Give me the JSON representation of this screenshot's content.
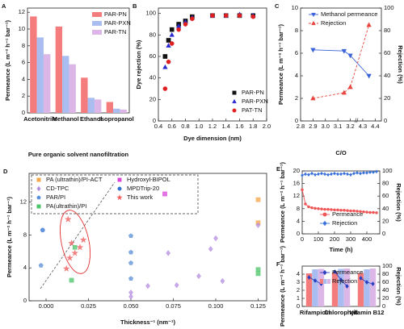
{
  "chart_data": [
    {
      "label": "A",
      "type": "bar",
      "ylabel": "Permeance (L m⁻² h⁻¹ bar⁻¹)",
      "xlabel": "Pure organic solvent nanofiltration",
      "categories": [
        "Acetonitrile",
        "Methanol",
        "Ethanol",
        "Isopropanol"
      ],
      "series": [
        {
          "name": "PAR-PN",
          "color": "#f47c7c",
          "values": [
            11.5,
            10.3,
            4.2,
            1.3
          ]
        },
        {
          "name": "PAR-PXN",
          "color": "#a9bdf0",
          "values": [
            9.0,
            6.8,
            1.8,
            0.5
          ]
        },
        {
          "name": "PAR-TN",
          "color": "#dcb6e6",
          "values": [
            7.0,
            5.8,
            1.6,
            0.4
          ]
        }
      ],
      "ylim": [
        0,
        12.5
      ],
      "yticks": [
        0,
        2,
        4,
        6,
        8,
        10,
        12
      ],
      "legend": "upper right"
    },
    {
      "label": "B",
      "type": "scatter",
      "ylabel": "Dye rejection (%)",
      "xlabel": "Dye dimension (nm)",
      "x": [
        0.5,
        0.55,
        0.6,
        0.7,
        0.8,
        0.9,
        1.2,
        1.4,
        1.6,
        1.8
      ],
      "series": [
        {
          "name": "PAR-PN",
          "color": "#111111",
          "marker": "square",
          "values": [
            60,
            75,
            85,
            90,
            93,
            97,
            98,
            98,
            98,
            98
          ]
        },
        {
          "name": "PAR-PXN",
          "color": "#2a2ad0",
          "marker": "triangle",
          "values": [
            50,
            70,
            80,
            88,
            92,
            96,
            98,
            98,
            99,
            98
          ]
        },
        {
          "name": "PAT-TN",
          "color": "#e02020",
          "marker": "circle",
          "values": [
            30,
            55,
            72,
            85,
            90,
            95,
            98,
            98,
            98,
            97
          ]
        }
      ],
      "xlim": [
        0.4,
        2.0
      ],
      "xticks": [
        0.4,
        0.6,
        0.8,
        {
          "value": 1,
          "label": "1.0"
        },
        1.2,
        1.4,
        1.6,
        1.8,
        {
          "value": 2,
          "label": "2.0"
        }
      ],
      "ylim": [
        0,
        105
      ],
      "yticks": [
        0,
        20,
        40,
        60,
        80,
        100
      ],
      "legend": "lower right"
    },
    {
      "label": "C",
      "type": "line",
      "ylabel": "Permeance (L m⁻² h⁻¹ bar⁻¹)",
      "y2label": "Rejection (%)",
      "xlabel": "C/O",
      "x": [
        2.9,
        3.15,
        3.2,
        4.35
      ],
      "series": [
        {
          "name": "Methanol permeance",
          "color": "#3a62d8",
          "marker": "tridown",
          "values": [
            6.3,
            6.2,
            5.8,
            4.0
          ]
        },
        {
          "name": "Rejection",
          "color": "#e8453c",
          "marker": "triangle",
          "dash": true,
          "axis": "y2",
          "values": [
            20,
            25,
            30,
            85
          ]
        }
      ],
      "xlim": [
        2.8,
        4.45
      ],
      "xbreak": [
        3.25,
        4.25
      ],
      "xticks": [
        2.8,
        2.9,
        {
          "value": 3,
          "label": "3.0"
        },
        3.1,
        3.2,
        4.3,
        4.4
      ],
      "ylim": [
        0,
        10
      ],
      "yticks": [
        0,
        2,
        4,
        6,
        8,
        10
      ],
      "y2lim": [
        0,
        100
      ],
      "y2ticks": [
        0,
        20,
        40,
        60,
        80,
        100
      ],
      "legend": "upper right"
    },
    {
      "label": "D",
      "type": "scatter",
      "ylabel": "Permeance (L m⁻² h⁻¹ bar⁻¹)",
      "xlabel": "Thickness⁻¹ (nm⁻¹)",
      "series": [
        {
          "name": "PA (ultrathin)/PI-ACT",
          "color": "#f5a54a",
          "marker": "square",
          "x": [
            0.125,
            0.125
          ],
          "values": [
            12.3,
            9.5
          ]
        },
        {
          "name": "Hydroxyl-BIPOL",
          "color": "#d946d9",
          "marker": "square",
          "x": [
            0.07
          ],
          "values": [
            13.0
          ]
        },
        {
          "name": "CD-TPC",
          "color": "#b48ce0",
          "marker": "diamond",
          "x": [
            0.05,
            0.05,
            0.06,
            0.072,
            0.077,
            0.09,
            0.097,
            0.1,
            0.104,
            0.125
          ],
          "values": [
            1.0,
            0.5,
            1.8,
            5.8,
            1.9,
            3.0,
            6.3,
            7.6,
            2.4,
            9.2
          ]
        },
        {
          "name": "MPDTrip-20",
          "color": "#2f6fd0",
          "marker": "circle",
          "x": [
            -0.002
          ],
          "values": [
            8.6
          ]
        },
        {
          "name": "PAR/PI",
          "color": "#5a8fd8",
          "marker": "pentagon",
          "x": [
            -0.003,
            0.05,
            0.05,
            0.05,
            0.05
          ],
          "values": [
            4.3,
            7.9,
            5.9,
            4.6,
            2.7
          ]
        },
        {
          "name": "This work",
          "color": "#ee5a5a",
          "marker": "star",
          "x": [
            0.013,
            0.015,
            0.017,
            0.014,
            0.02,
            0.022,
            0.012
          ],
          "values": [
            9.9,
            7.0,
            5.8,
            5.2,
            6.5,
            7.4,
            3.9
          ]
        },
        {
          "name": "PA(ultrathin)/PI",
          "color": "#4cc46a",
          "marker": "square",
          "x": [
            0.017,
            0.015,
            0.125,
            0.125
          ],
          "values": [
            6.5,
            2.5,
            3.8,
            3.3
          ]
        }
      ],
      "xlim": [
        -0.01,
        0.13
      ],
      "xticks": [
        {
          "value": 0,
          "label": "0.000"
        },
        {
          "value": 0.025,
          "label": "0.025"
        },
        {
          "value": 0.05,
          "label": "0.050"
        },
        {
          "value": 0.075,
          "label": "0.075"
        },
        {
          "value": 0.1,
          "label": "0.100"
        },
        {
          "value": 0.125,
          "label": "0.125"
        }
      ],
      "ylim": [
        0,
        15.5
      ],
      "yticks": [
        0,
        4,
        8,
        12
      ],
      "legend": "upper left"
    },
    {
      "label": "E",
      "type": "line",
      "ylabel": "Permeance (L m⁻² h⁻¹ bar⁻¹)",
      "y2label": "Rejection (%)",
      "xlabel": "Time (h)",
      "x": [
        0,
        20,
        40,
        60,
        80,
        100,
        120,
        140,
        160,
        180,
        200,
        220,
        240,
        260,
        280,
        300,
        320,
        340,
        360,
        380,
        400,
        420,
        440,
        460
      ],
      "series": [
        {
          "name": "Permeance",
          "color": "#ee5555",
          "marker": "circle",
          "values": [
            14,
            9.5,
            8.6,
            8.3,
            8.1,
            8.0,
            7.9,
            7.8,
            7.8,
            7.7,
            7.6,
            7.6,
            7.5,
            7.5,
            7.4,
            7.3,
            7.3,
            7.2,
            7.1,
            7.0,
            6.9,
            6.8,
            6.8,
            6.7
          ]
        },
        {
          "name": "Rejection",
          "color": "#3a72d8",
          "marker": "diamond",
          "axis": "y2",
          "values": [
            93,
            95,
            94,
            96,
            94,
            95,
            96,
            95,
            94,
            95,
            96,
            95,
            95,
            96,
            95,
            94,
            96,
            97,
            96,
            97,
            97,
            98,
            98,
            99
          ]
        }
      ],
      "xlim": [
        0,
        480
      ],
      "xticks": [
        0,
        100,
        200,
        300,
        400
      ],
      "ylim": [
        0,
        20
      ],
      "yticks": [
        0,
        4,
        8,
        12,
        16,
        20
      ],
      "y2lim": [
        0,
        100
      ],
      "y2ticks": [
        0,
        20,
        40,
        60,
        80,
        100
      ],
      "legend": "lower center"
    },
    {
      "label": "F",
      "type": "combo",
      "ylabel": "Permeance (L m⁻² h⁻¹ bar⁻¹)",
      "y2label": "Rejection (%)",
      "categories": [
        "Rifampicin",
        "Chlorophyll",
        "Vitamin B12"
      ],
      "series": [
        {
          "name": "Permeance",
          "color": "#2a3fc0",
          "marker": "diamond",
          "values": [
            [
              3.6,
              3.2,
              2.8
            ],
            [
              4.3,
              3.3,
              2.5
            ],
            [
              3.5,
              3.0,
              2.8
            ]
          ]
        },
        {
          "name": "Rejection",
          "colors": [
            "#f47c7c",
            "#a9bdf0",
            "#dcb6e6"
          ],
          "axis": "y2",
          "values": [
            [
              82,
              92,
              93
            ],
            [
              84,
              93,
              94
            ],
            [
              83,
              92,
              94
            ]
          ]
        }
      ],
      "ylim": [
        0,
        5
      ],
      "yticks": [
        0,
        1,
        2,
        3,
        4
      ],
      "y2lim": [
        0,
        100
      ],
      "y2ticks": [
        0,
        20,
        40,
        60,
        80,
        100
      ],
      "legend": "upper center"
    }
  ]
}
